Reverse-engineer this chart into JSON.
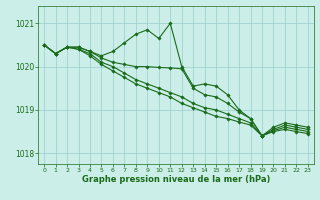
{
  "background_color": "#cceee8",
  "grid_color": "#99cccc",
  "line_color": "#1a6b1a",
  "marker_color": "#1a6b1a",
  "xlabel": "Graphe pression niveau de la mer (hPa)",
  "xlabel_color": "#1a6b1a",
  "tick_color": "#1a6b1a",
  "ylim": [
    1017.75,
    1021.4
  ],
  "xlim": [
    -0.5,
    23.5
  ],
  "yticks": [
    1018,
    1019,
    1020,
    1021
  ],
  "series": [
    [
      1020.5,
      1020.3,
      1020.45,
      1020.45,
      1020.35,
      1020.25,
      1020.35,
      1020.55,
      1020.75,
      1020.85,
      1020.65,
      1021.0,
      1020.0,
      1019.55,
      1019.6,
      1019.55,
      1019.35,
      1019.0,
      1018.8,
      1018.4,
      1018.6,
      1018.7,
      1018.65,
      1018.6
    ],
    [
      1020.5,
      1020.3,
      1020.45,
      1020.45,
      1020.35,
      1020.2,
      1020.1,
      1020.05,
      1020.0,
      1020.0,
      1019.98,
      1019.97,
      1019.95,
      1019.5,
      1019.35,
      1019.3,
      1019.15,
      1018.95,
      1018.8,
      1018.4,
      1018.55,
      1018.65,
      1018.6,
      1018.55
    ],
    [
      1020.5,
      1020.3,
      1020.45,
      1020.4,
      1020.3,
      1020.1,
      1020.0,
      1019.85,
      1019.7,
      1019.6,
      1019.5,
      1019.4,
      1019.3,
      1019.15,
      1019.05,
      1019.0,
      1018.9,
      1018.8,
      1018.7,
      1018.4,
      1018.52,
      1018.6,
      1018.55,
      1018.5
    ],
    [
      1020.5,
      1020.3,
      1020.45,
      1020.4,
      1020.25,
      1020.05,
      1019.9,
      1019.75,
      1019.6,
      1019.5,
      1019.4,
      1019.3,
      1019.15,
      1019.05,
      1018.95,
      1018.85,
      1018.8,
      1018.72,
      1018.65,
      1018.4,
      1018.5,
      1018.55,
      1018.5,
      1018.45
    ]
  ]
}
